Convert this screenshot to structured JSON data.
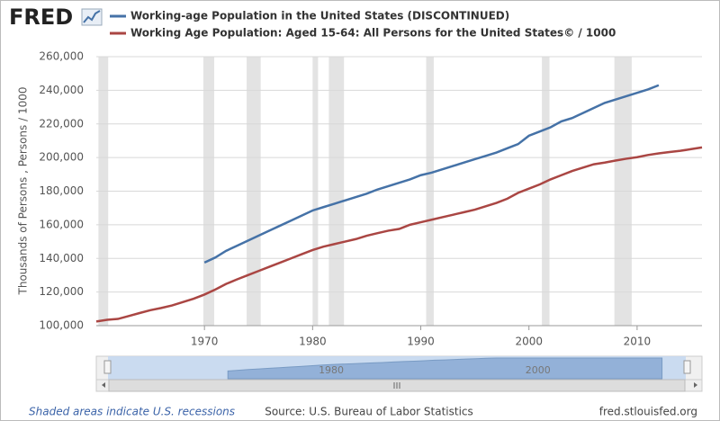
{
  "header": {
    "logo": "FRED"
  },
  "chart_data": {
    "type": "line",
    "y_label": "Thousands of Persons , Persons / 1000",
    "x": [
      1960,
      1961,
      1962,
      1963,
      1964,
      1965,
      1966,
      1967,
      1968,
      1969,
      1970,
      1971,
      1972,
      1973,
      1974,
      1975,
      1976,
      1977,
      1978,
      1979,
      1980,
      1981,
      1982,
      1983,
      1984,
      1985,
      1986,
      1987,
      1988,
      1989,
      1990,
      1991,
      1992,
      1993,
      1994,
      1995,
      1996,
      1997,
      1998,
      1999,
      2000,
      2001,
      2002,
      2003,
      2004,
      2005,
      2006,
      2007,
      2008,
      2009,
      2010,
      2011,
      2012,
      2013,
      2014,
      2015,
      2016
    ],
    "series": [
      {
        "name": "Working-age Population in the United States (DISCONTINUED)",
        "color": "#4572a7",
        "values": [
          null,
          null,
          null,
          null,
          null,
          null,
          null,
          null,
          null,
          null,
          137500,
          140500,
          144500,
          147500,
          150500,
          153500,
          156500,
          159500,
          162500,
          165500,
          168500,
          170500,
          172500,
          174500,
          176500,
          178500,
          181000,
          183000,
          185000,
          187000,
          189500,
          191000,
          193000,
          195000,
          197000,
          199000,
          201000,
          203000,
          205500,
          208000,
          213000,
          215500,
          218000,
          221500,
          223500,
          226500,
          229500,
          232500,
          234500,
          236500,
          238500,
          240500,
          243000,
          null,
          null,
          null,
          null
        ]
      },
      {
        "name": "Working Age Population: Aged 15-64: All Persons for the United States© / 1000",
        "color": "#aa4643",
        "values": [
          102500,
          103500,
          104000,
          105700,
          107500,
          109200,
          110500,
          112000,
          114000,
          116000,
          118500,
          121500,
          124800,
          127500,
          130000,
          132500,
          135000,
          137500,
          140000,
          142500,
          145000,
          147000,
          148500,
          150000,
          151500,
          153500,
          155000,
          156500,
          157500,
          160000,
          161500,
          163000,
          164500,
          166000,
          167500,
          169000,
          171000,
          173000,
          175500,
          179000,
          181500,
          184000,
          187000,
          189500,
          192000,
          194000,
          196000,
          197000,
          198200,
          199300,
          200200,
          201500,
          202500,
          203300,
          204000,
          205000,
          206000
        ]
      }
    ],
    "xlim": [
      1960,
      2016
    ],
    "xticks": [
      1970,
      1980,
      1990,
      2000,
      2010
    ],
    "ylim": [
      100000,
      260000
    ],
    "yticks": [
      {
        "value": 100000,
        "label": "100,000"
      },
      {
        "value": 120000,
        "label": "120,000"
      },
      {
        "value": 140000,
        "label": "140,000"
      },
      {
        "value": 160000,
        "label": "160,000"
      },
      {
        "value": 180000,
        "label": "180,000"
      },
      {
        "value": 200000,
        "label": "200,000"
      },
      {
        "value": 220000,
        "label": "220,000"
      },
      {
        "value": 240000,
        "label": "240,000"
      },
      {
        "value": 260000,
        "label": "260,000"
      }
    ],
    "grid": true,
    "recessions": [
      [
        1960.2,
        1961.1
      ],
      [
        1969.9,
        1970.9
      ],
      [
        1973.9,
        1975.2
      ],
      [
        1980.0,
        1980.5
      ],
      [
        1981.5,
        1982.9
      ],
      [
        1990.5,
        1991.2
      ],
      [
        2001.2,
        2001.9
      ],
      [
        2007.9,
        2009.5
      ]
    ],
    "navigator": {
      "xlim": [
        1958.4,
        2014.3
      ],
      "xticks": [
        1980,
        2000
      ]
    }
  },
  "footer": {
    "note": "Shaded areas indicate U.S. recessions",
    "source": "Source: U.S. Bureau of Labor Statistics",
    "site": "fred.stlouisfed.org"
  }
}
